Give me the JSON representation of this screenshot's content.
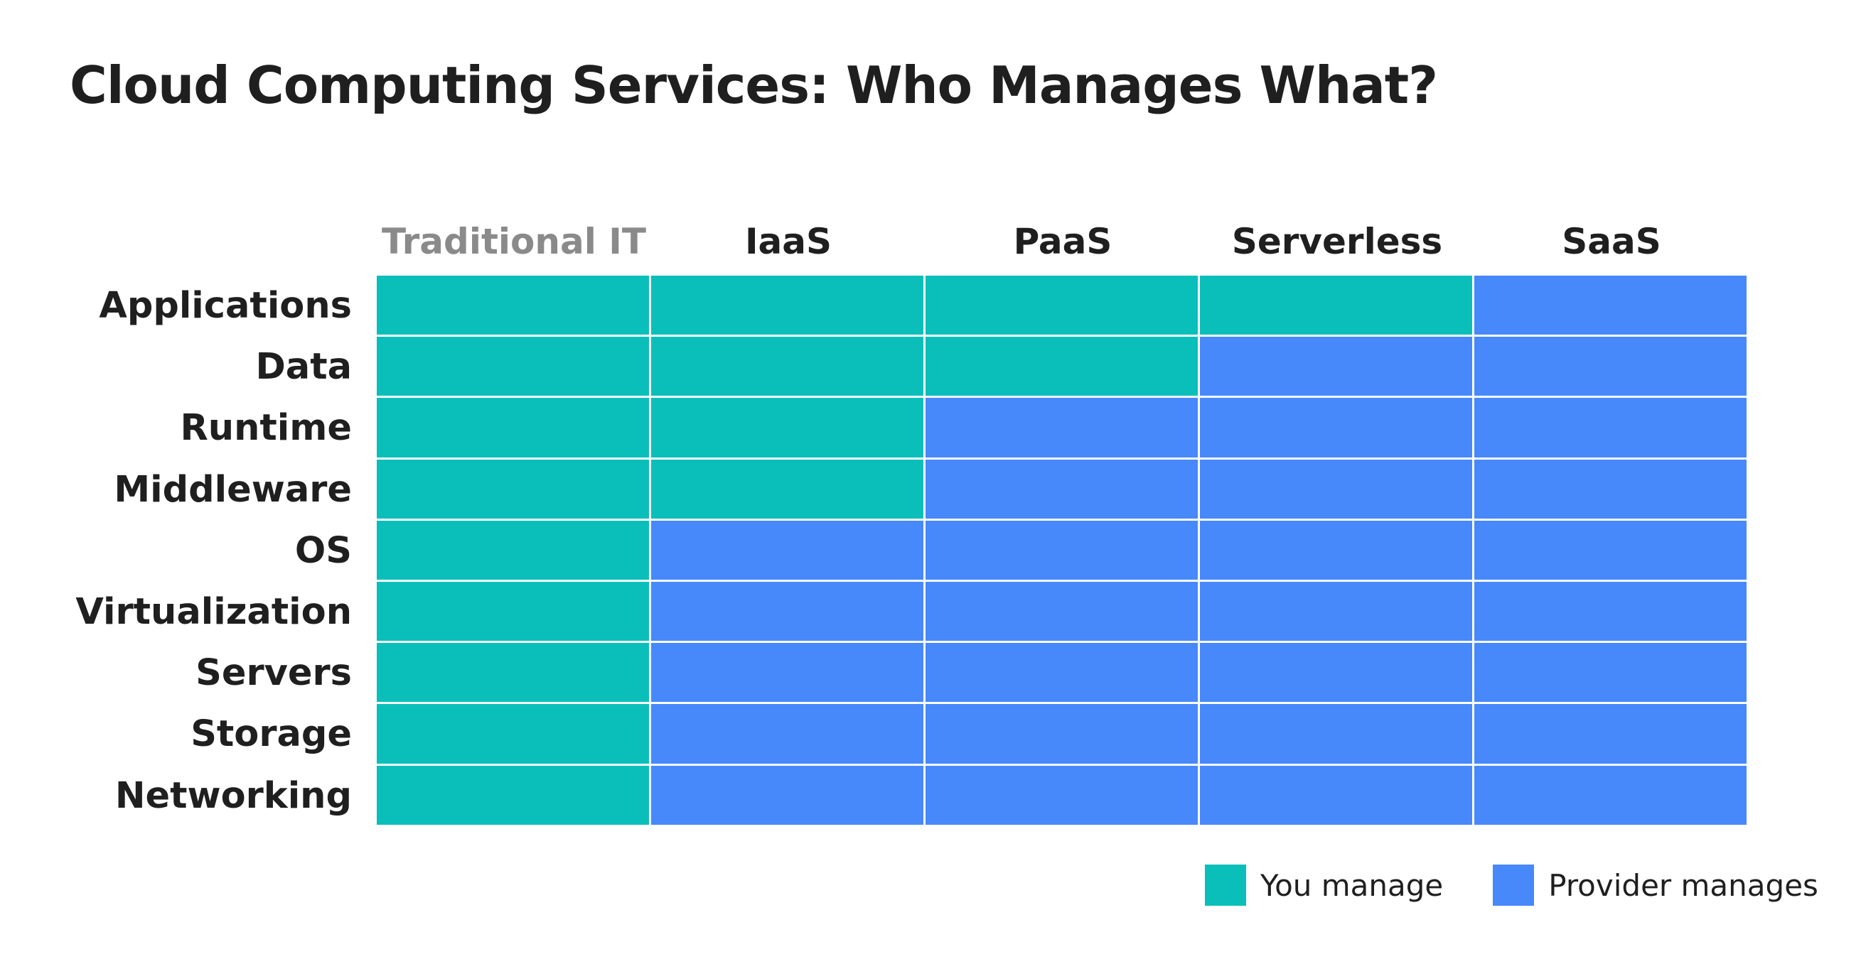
{
  "title": "Cloud Computing Services: Who Manages What?",
  "colors": {
    "you_manage": "#0abfba",
    "provider_manages": "#4788fb",
    "muted_header": "#8a8a8a"
  },
  "columns": [
    "Traditional IT",
    "IaaS",
    "PaaS",
    "Serverless",
    "SaaS"
  ],
  "rows": [
    "Applications",
    "Data",
    "Runtime",
    "Middleware",
    "OS",
    "Virtualization",
    "Servers",
    "Storage",
    "Networking"
  ],
  "matrix": [
    [
      "you",
      "you",
      "you",
      "you",
      "provider"
    ],
    [
      "you",
      "you",
      "you",
      "provider",
      "provider"
    ],
    [
      "you",
      "you",
      "provider",
      "provider",
      "provider"
    ],
    [
      "you",
      "you",
      "provider",
      "provider",
      "provider"
    ],
    [
      "you",
      "provider",
      "provider",
      "provider",
      "provider"
    ],
    [
      "you",
      "provider",
      "provider",
      "provider",
      "provider"
    ],
    [
      "you",
      "provider",
      "provider",
      "provider",
      "provider"
    ],
    [
      "you",
      "provider",
      "provider",
      "provider",
      "provider"
    ],
    [
      "you",
      "provider",
      "provider",
      "provider",
      "provider"
    ]
  ],
  "legend": {
    "you_label": "You manage",
    "provider_label": "Provider manages"
  }
}
